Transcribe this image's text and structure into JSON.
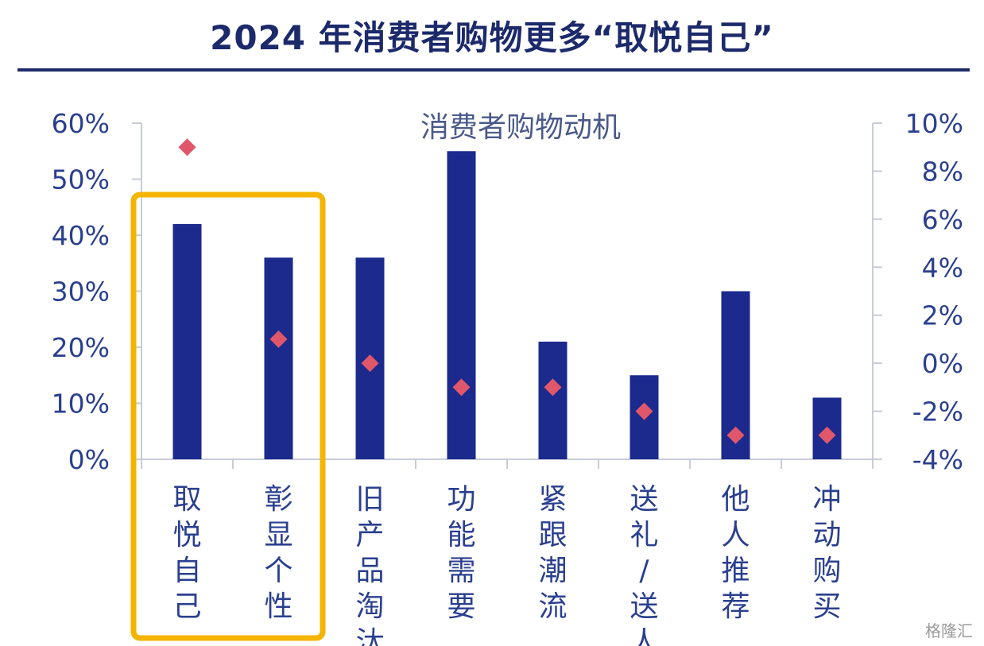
{
  "title": "2024 年消费者购物更多“取悦自己”",
  "watermark": "格隆汇",
  "chart_data": {
    "type": "bar",
    "title": "消费者购物动机",
    "categories": [
      "取悦自己",
      "彰显个性",
      "旧产品淘汰",
      "功能需要",
      "紧跟潮流",
      "送礼/送人",
      "他人推荐",
      "冲动购买"
    ],
    "series": [
      {
        "axis": "left",
        "mark": "bar",
        "color": "#1b2a8c",
        "values": [
          42,
          36,
          36,
          55,
          21,
          15,
          30,
          11
        ]
      },
      {
        "axis": "right",
        "mark": "diamond",
        "color": "#e0566a",
        "values": [
          9,
          1,
          0,
          -1,
          -1,
          -2,
          -3,
          -3
        ]
      }
    ],
    "y_left": {
      "range": [
        0,
        60
      ],
      "ticks": [
        0,
        10,
        20,
        30,
        40,
        50,
        60
      ],
      "tick_labels": [
        "0%",
        "10%",
        "20%",
        "30%",
        "40%",
        "50%",
        "60%"
      ]
    },
    "y_right": {
      "range": [
        -4,
        10
      ],
      "ticks": [
        -4,
        -2,
        0,
        2,
        4,
        6,
        8,
        10
      ],
      "tick_labels": [
        "-4%",
        "-2%",
        "0%",
        "2%",
        "4%",
        "6%",
        "8%",
        "10%"
      ]
    },
    "highlight": {
      "categories": [
        "取悦自己",
        "彰显个性"
      ],
      "color": "#f5b400"
    },
    "grid": false,
    "axis_color": "#1c2a6b"
  }
}
